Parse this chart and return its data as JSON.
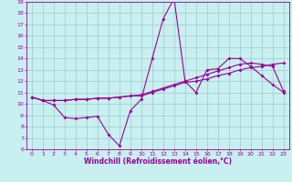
{
  "xlabel": "Windchill (Refroidissement éolien,°C)",
  "bg_color": "#c8f0f0",
  "grid_color": "#a0c8c8",
  "line_color": "#990099",
  "x_values": [
    0,
    1,
    2,
    3,
    4,
    5,
    6,
    7,
    8,
    9,
    10,
    11,
    12,
    13,
    14,
    15,
    16,
    17,
    18,
    19,
    20,
    21,
    22,
    23
  ],
  "line1": [
    10.6,
    10.3,
    9.9,
    8.8,
    8.7,
    8.8,
    8.9,
    7.3,
    6.3,
    9.4,
    10.4,
    14.0,
    17.5,
    19.3,
    12.0,
    11.0,
    13.0,
    13.1,
    14.0,
    14.0,
    13.3,
    12.5,
    11.7,
    11.0
  ],
  "line2": [
    10.6,
    10.3,
    10.3,
    10.3,
    10.4,
    10.4,
    10.5,
    10.5,
    10.6,
    10.7,
    10.7,
    11.0,
    11.3,
    11.6,
    11.9,
    12.0,
    12.2,
    12.5,
    12.7,
    13.0,
    13.2,
    13.3,
    13.5,
    13.6
  ],
  "line3": [
    10.6,
    10.3,
    10.3,
    10.3,
    10.4,
    10.4,
    10.5,
    10.5,
    10.6,
    10.7,
    10.8,
    11.1,
    11.4,
    11.7,
    12.0,
    12.3,
    12.6,
    12.9,
    13.2,
    13.5,
    13.6,
    13.5,
    13.3,
    11.1
  ],
  "ylim": [
    6,
    19
  ],
  "xlim": [
    -0.5,
    23.5
  ],
  "ytick_vals": [
    6,
    7,
    8,
    9,
    10,
    11,
    12,
    13,
    14,
    15,
    16,
    17,
    18,
    19
  ],
  "xtick_vals": [
    0,
    1,
    2,
    3,
    4,
    5,
    6,
    7,
    8,
    9,
    10,
    11,
    12,
    13,
    14,
    15,
    16,
    17,
    18,
    19,
    20,
    21,
    22,
    23
  ],
  "tick_fontsize": 4.5,
  "xlabel_fontsize": 5.5,
  "marker_size": 2.0,
  "line_width": 0.8
}
